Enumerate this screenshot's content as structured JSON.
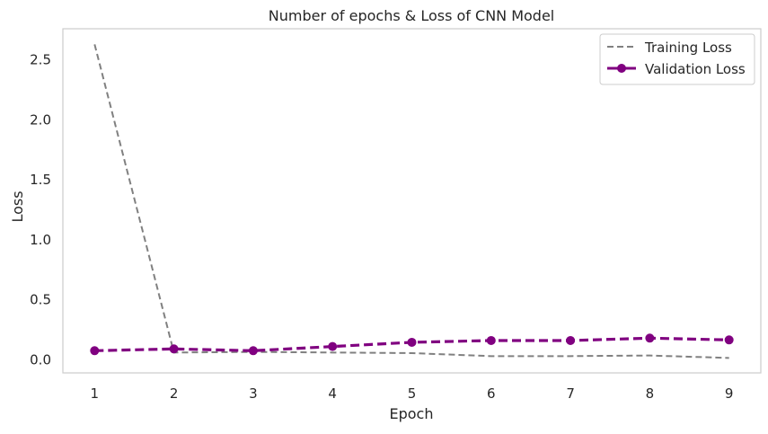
{
  "chart_data": {
    "type": "line",
    "title": "Number of epochs & Loss of CNN Model",
    "xlabel": "Epoch",
    "ylabel": "Loss",
    "x": [
      1,
      2,
      3,
      4,
      5,
      6,
      7,
      8,
      9
    ],
    "xlim": [
      0.6,
      9.4
    ],
    "ylim": [
      -0.11,
      2.76
    ],
    "yticks": [
      0.0,
      0.5,
      1.0,
      1.5,
      2.0,
      2.5
    ],
    "grid": false,
    "legend_position": "top-right",
    "series": [
      {
        "name": "Training Loss",
        "values": [
          2.63,
          0.06,
          0.065,
          0.06,
          0.055,
          0.03,
          0.03,
          0.035,
          0.015
        ],
        "color": "#808080",
        "style": "dashed",
        "marker": "none"
      },
      {
        "name": "Validation Loss",
        "values": [
          0.075,
          0.09,
          0.075,
          0.11,
          0.145,
          0.16,
          0.16,
          0.18,
          0.165
        ],
        "color": "#800080",
        "style": "dashed",
        "marker": "circle"
      }
    ]
  }
}
